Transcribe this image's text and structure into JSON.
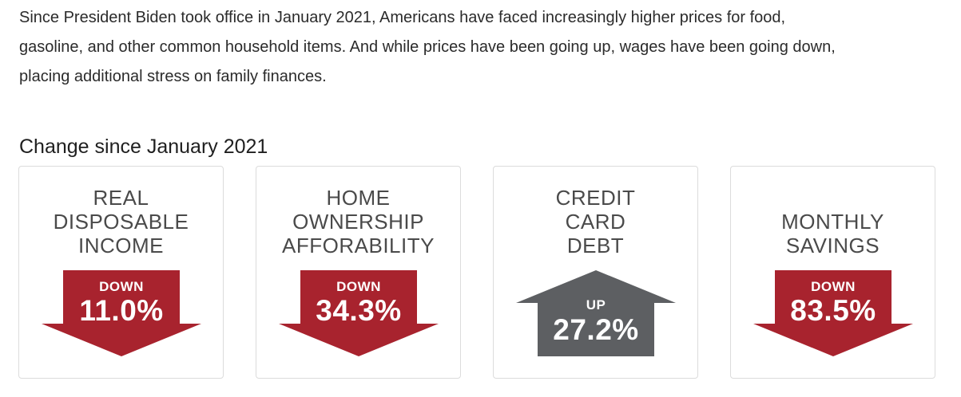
{
  "intro": {
    "line1": "Since President Biden took office in January 2021, Americans have faced increasingly higher prices for food,",
    "line2": "gasoline, and other common household items. And while prices have been going up, wages have been going down,",
    "line3": "placing additional stress on family finances."
  },
  "heading": "Change since January 2021",
  "colors": {
    "down_arrow": "#a8232e",
    "up_arrow": "#5d5f62"
  },
  "cards": [
    {
      "title_lines": [
        "REAL",
        "DISPOSABLE",
        "INCOME"
      ],
      "direction_label": "DOWN",
      "value": "11.0%",
      "arrow": "down-arrow-icon"
    },
    {
      "title_lines": [
        "HOME",
        "OWNERSHIP",
        "AFFORABILITY"
      ],
      "direction_label": "DOWN",
      "value": "34.3%",
      "arrow": "down-arrow-icon"
    },
    {
      "title_lines": [
        "CREDIT",
        "CARD",
        "DEBT"
      ],
      "direction_label": "UP",
      "value": "27.2%",
      "arrow": "up-arrow-icon"
    },
    {
      "title_lines": [
        "MONTHLY",
        "SAVINGS"
      ],
      "direction_label": "DOWN",
      "value": "83.5%",
      "arrow": "down-arrow-icon"
    }
  ]
}
